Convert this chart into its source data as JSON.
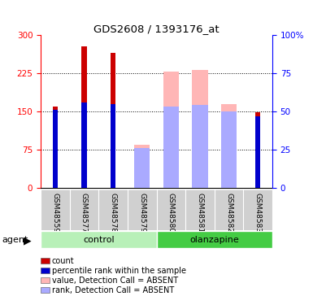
{
  "title": "GDS2608 / 1393176_at",
  "samples": [
    "GSM48559",
    "GSM48577",
    "GSM48578",
    "GSM48579",
    "GSM48580",
    "GSM48581",
    "GSM48582",
    "GSM48583"
  ],
  "count_values": [
    160,
    278,
    265,
    0,
    0,
    0,
    0,
    148
  ],
  "rank_values": [
    51,
    56,
    55,
    0,
    0,
    0,
    0,
    47
  ],
  "absent_value": [
    0,
    0,
    0,
    85,
    228,
    232,
    165,
    0
  ],
  "absent_rank": [
    0,
    0,
    0,
    26,
    53,
    54,
    50,
    0
  ],
  "count_color": "#cc0000",
  "rank_color": "#0000cc",
  "absent_val_color": "#ffb6b6",
  "absent_rank_color": "#aaaaff",
  "ylim_left": [
    0,
    300
  ],
  "ylim_right": [
    0,
    100
  ],
  "yticks_left": [
    0,
    75,
    150,
    225,
    300
  ],
  "yticks_right": [
    0,
    25,
    50,
    75,
    100
  ],
  "control_color": "#b8f0b8",
  "olanzapine_color": "#44cc44",
  "label_bg_color": "#d0d0d0"
}
